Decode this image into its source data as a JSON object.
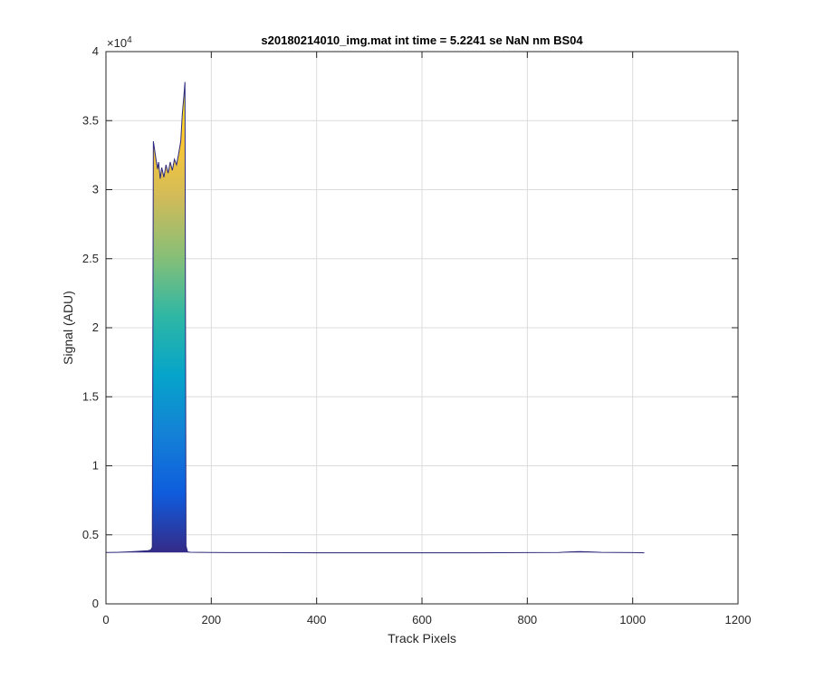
{
  "chart_data": {
    "type": "area",
    "title": "s20180214010_img.mat int time = 5.2241 se  NaN nm BS04",
    "xlabel": "Track Pixels",
    "ylabel": "Signal (ADU)",
    "xlim": [
      0,
      1200
    ],
    "ylim": [
      0,
      40000
    ],
    "xticks": [
      0,
      200,
      400,
      600,
      800,
      1000,
      1200
    ],
    "xtick_labels": [
      "0",
      "200",
      "400",
      "600",
      "800",
      "1000",
      "1200"
    ],
    "yticks": [
      0,
      5000,
      10000,
      15000,
      20000,
      25000,
      30000,
      35000,
      40000
    ],
    "ytick_labels": [
      "0",
      "0.5",
      "1",
      "1.5",
      "2",
      "2.5",
      "3",
      "3.5",
      "4"
    ],
    "y_exponent": "×10",
    "y_exponent_power": "4",
    "grid": true,
    "colormap": [
      "#352a87",
      "#0f5cdd",
      "#1481d6",
      "#06a4ca",
      "#2eb7a4",
      "#87bf77",
      "#d1bb59",
      "#fec832",
      "#f9fb0e"
    ],
    "x": [
      0,
      20,
      40,
      60,
      80,
      85,
      88,
      90,
      92,
      95,
      98,
      100,
      103,
      106,
      110,
      114,
      118,
      122,
      126,
      130,
      134,
      138,
      142,
      145,
      148,
      150,
      152,
      155,
      160,
      200,
      300,
      400,
      500,
      600,
      700,
      800,
      860,
      880,
      900,
      920,
      940,
      1000,
      1022
    ],
    "y": [
      3720,
      3730,
      3760,
      3800,
      3850,
      3900,
      4100,
      33500,
      33000,
      32200,
      31500,
      32000,
      30800,
      31600,
      30900,
      31800,
      31200,
      32000,
      31400,
      32200,
      31800,
      32600,
      33500,
      35500,
      36800,
      37800,
      4200,
      3760,
      3740,
      3720,
      3710,
      3700,
      3700,
      3700,
      3700,
      3710,
      3720,
      3760,
      3790,
      3760,
      3730,
      3710,
      3700
    ]
  }
}
